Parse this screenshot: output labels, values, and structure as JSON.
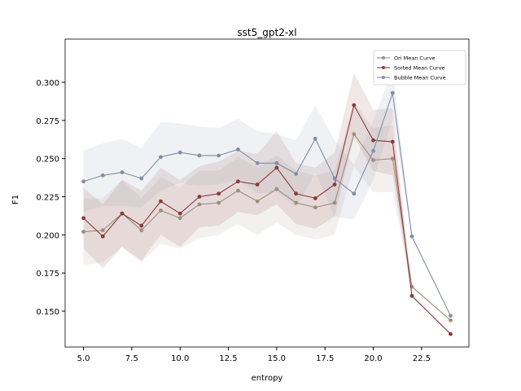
{
  "chart_data": {
    "type": "line",
    "title": "sst5_gpt2-xl",
    "x_label": "entropy",
    "y_label": "F1",
    "x": [
      5,
      6,
      7,
      8,
      9,
      10,
      11,
      12,
      13,
      14,
      15,
      16,
      17,
      18,
      19,
      20,
      21,
      22,
      24
    ],
    "series": [
      {
        "name": "Ori Mean Curve",
        "color": "#9e8e7e",
        "values": [
          0.202,
          0.203,
          0.214,
          0.203,
          0.216,
          0.211,
          0.22,
          0.221,
          0.229,
          0.222,
          0.23,
          0.221,
          0.218,
          0.221,
          0.266,
          0.249,
          0.25,
          0.166,
          0.144
        ],
        "upper": [
          0.224,
          0.224,
          0.236,
          0.224,
          0.238,
          0.231,
          0.242,
          0.242,
          0.251,
          0.244,
          0.252,
          0.242,
          0.239,
          0.242,
          0.287,
          0.27,
          0.272,
          0.167,
          0.144
        ],
        "lower": [
          0.18,
          0.182,
          0.192,
          0.182,
          0.194,
          0.191,
          0.198,
          0.2,
          0.207,
          0.2,
          0.208,
          0.2,
          0.197,
          0.2,
          0.245,
          0.228,
          0.228,
          0.165,
          0.144
        ]
      },
      {
        "name": "Sorted Mean Curve",
        "color": "#8c3b3b",
        "values": [
          0.211,
          0.199,
          0.214,
          0.206,
          0.222,
          0.214,
          0.225,
          0.227,
          0.235,
          0.233,
          0.244,
          0.227,
          0.224,
          0.233,
          0.285,
          0.262,
          0.261,
          0.16,
          0.135
        ],
        "upper": [
          0.231,
          0.22,
          0.236,
          0.229,
          0.244,
          0.236,
          0.245,
          0.248,
          0.255,
          0.253,
          0.268,
          0.247,
          0.244,
          0.254,
          0.306,
          0.282,
          0.283,
          0.161,
          0.135
        ],
        "lower": [
          0.191,
          0.178,
          0.192,
          0.183,
          0.2,
          0.192,
          0.205,
          0.206,
          0.215,
          0.213,
          0.22,
          0.207,
          0.204,
          0.212,
          0.264,
          0.242,
          0.239,
          0.159,
          0.135
        ]
      },
      {
        "name": "Bubble Mean Curve",
        "color": "#7f8fa6",
        "values": [
          0.235,
          0.239,
          0.241,
          0.237,
          0.251,
          0.254,
          0.252,
          0.252,
          0.256,
          0.247,
          0.247,
          0.24,
          0.263,
          0.237,
          0.227,
          0.255,
          0.293,
          0.199,
          0.147
        ],
        "upper": [
          0.255,
          0.26,
          0.263,
          0.257,
          0.274,
          0.273,
          0.271,
          0.27,
          0.276,
          0.268,
          0.266,
          0.262,
          0.285,
          0.262,
          0.246,
          0.275,
          0.308,
          0.2,
          0.147
        ],
        "lower": [
          0.215,
          0.219,
          0.219,
          0.218,
          0.229,
          0.234,
          0.232,
          0.233,
          0.236,
          0.227,
          0.228,
          0.218,
          0.241,
          0.212,
          0.21,
          0.236,
          0.276,
          0.198,
          0.147
        ]
      }
    ],
    "xlim": [
      4.05,
      24.95
    ],
    "ylim": [
      0.1265,
      0.3283
    ],
    "xticks": [
      {
        "value": 5,
        "label": "5.0"
      },
      {
        "value": 7.5,
        "label": "7.5"
      },
      {
        "value": 10,
        "label": "10.0"
      },
      {
        "value": 12.5,
        "label": "12.5"
      },
      {
        "value": 15,
        "label": "15.0"
      },
      {
        "value": 17.5,
        "label": "17.5"
      },
      {
        "value": 20,
        "label": "20.0"
      },
      {
        "value": 22.5,
        "label": "22.5"
      }
    ],
    "yticks": [
      {
        "value": 0.15,
        "label": "0.150"
      },
      {
        "value": 0.175,
        "label": "0.175"
      },
      {
        "value": 0.2,
        "label": "0.200"
      },
      {
        "value": 0.225,
        "label": "0.225"
      },
      {
        "value": 0.25,
        "label": "0.250"
      },
      {
        "value": 0.275,
        "label": "0.275"
      },
      {
        "value": 0.3,
        "label": "0.300"
      }
    ],
    "grid": false,
    "legend": "upper right"
  }
}
